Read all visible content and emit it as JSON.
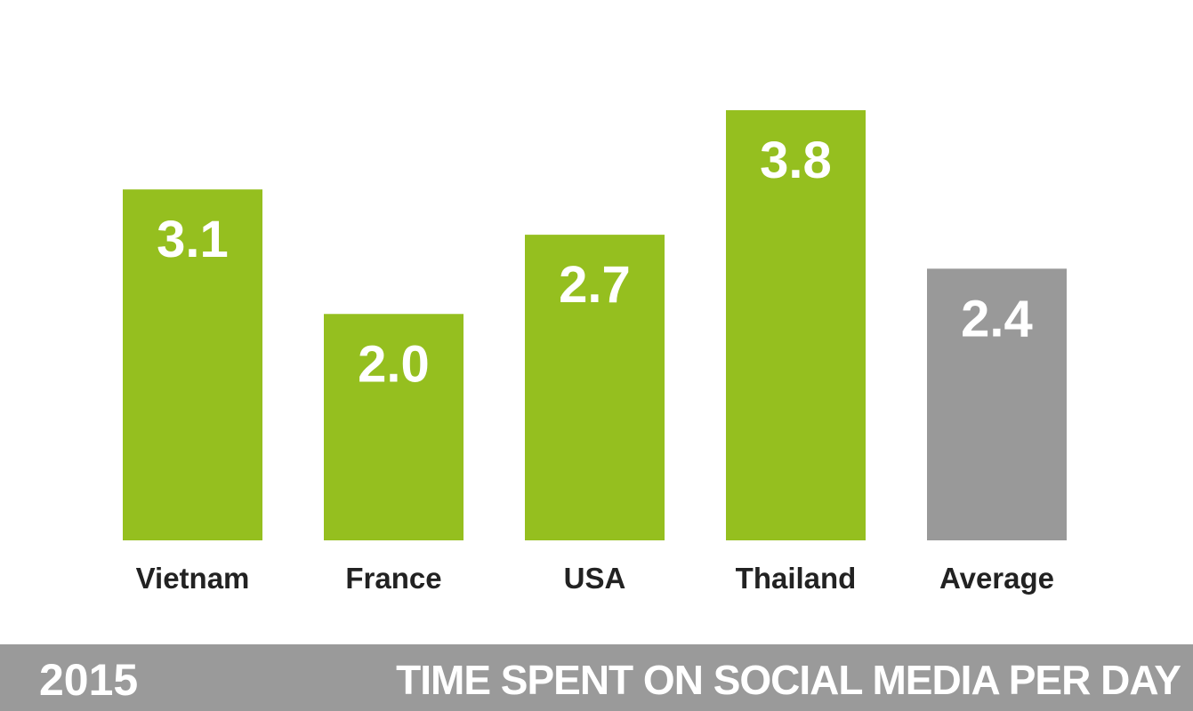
{
  "chart_data": {
    "type": "bar",
    "title": "TIME SPENT ON SOCIAL MEDIA PER DAY",
    "subtitle": "2015",
    "categories": [
      "Vietnam",
      "France",
      "USA",
      "Thailand",
      "Average"
    ],
    "values": [
      3.1,
      2.0,
      2.7,
      3.8,
      2.4
    ],
    "value_labels": [
      "3.1",
      "2.0",
      "2.7",
      "3.8",
      "2.4"
    ],
    "bar_colors": [
      "#95bf1f",
      "#95bf1f",
      "#95bf1f",
      "#95bf1f",
      "#999999"
    ],
    "xlabel": "",
    "ylabel": "",
    "ylim": [
      0,
      3.8
    ],
    "grid": false,
    "legend": "none"
  },
  "footer": {
    "year": "2015",
    "title": "TIME SPENT ON SOCIAL MEDIA PER DAY",
    "background": "#9a9a9a"
  }
}
